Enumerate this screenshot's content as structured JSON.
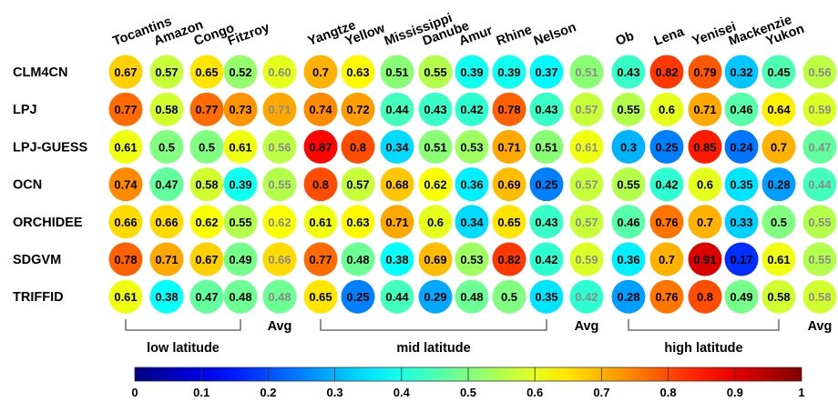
{
  "chart_data": {
    "type": "heatmap",
    "models": [
      "CLM4CN",
      "LPJ",
      "LPJ-GUESS",
      "OCN",
      "ORCHIDEE",
      "SDGVM",
      "TRIFFID"
    ],
    "groups": [
      {
        "label": "low latitude",
        "avg_label": "Avg",
        "rivers": [
          "Tocantins",
          "Amazon",
          "Congo",
          "Fitzroy"
        ],
        "values": [
          [
            0.67,
            0.57,
            0.65,
            0.52
          ],
          [
            0.77,
            0.58,
            0.77,
            0.73
          ],
          [
            0.61,
            0.5,
            0.5,
            0.61
          ],
          [
            0.74,
            0.47,
            0.58,
            0.39
          ],
          [
            0.66,
            0.66,
            0.62,
            0.55
          ],
          [
            0.78,
            0.71,
            0.67,
            0.49
          ],
          [
            0.61,
            0.38,
            0.47,
            0.48
          ]
        ],
        "avg": [
          0.6,
          0.71,
          0.56,
          0.55,
          0.62,
          0.66,
          0.48
        ]
      },
      {
        "label": "mid latitude",
        "avg_label": "Avg",
        "rivers": [
          "Yangtze",
          "Yellow",
          "Mississippi",
          "Danube",
          "Amur",
          "Rhine",
          "Nelson"
        ],
        "values": [
          [
            0.7,
            0.63,
            0.51,
            0.55,
            0.39,
            0.39,
            0.37
          ],
          [
            0.74,
            0.72,
            0.44,
            0.43,
            0.42,
            0.78,
            0.43
          ],
          [
            0.87,
            0.8,
            0.34,
            0.51,
            0.53,
            0.71,
            0.51
          ],
          [
            0.8,
            0.57,
            0.68,
            0.62,
            0.36,
            0.69,
            0.25
          ],
          [
            0.61,
            0.63,
            0.71,
            0.6,
            0.34,
            0.65,
            0.43
          ],
          [
            0.77,
            0.48,
            0.38,
            0.69,
            0.53,
            0.82,
            0.42
          ],
          [
            0.65,
            0.25,
            0.44,
            0.29,
            0.48,
            0.5,
            0.35
          ]
        ],
        "avg": [
          0.51,
          0.57,
          0.61,
          0.57,
          0.57,
          0.59,
          0.42
        ]
      },
      {
        "label": "high latitude",
        "avg_label": "Avg",
        "rivers": [
          "Ob",
          "Lena",
          "Yenisei",
          "Mackenzie",
          "Yukon"
        ],
        "values": [
          [
            0.43,
            0.82,
            0.79,
            0.32,
            0.45
          ],
          [
            0.55,
            0.6,
            0.71,
            0.46,
            0.64
          ],
          [
            0.3,
            0.25,
            0.85,
            0.24,
            0.7
          ],
          [
            0.55,
            0.42,
            0.6,
            0.35,
            0.28
          ],
          [
            0.46,
            0.76,
            0.7,
            0.33,
            0.5
          ],
          [
            0.36,
            0.7,
            0.91,
            0.17,
            0.61
          ],
          [
            0.28,
            0.76,
            0.8,
            0.49,
            0.58
          ]
        ],
        "avg": [
          0.56,
          0.59,
          0.47,
          0.44,
          0.55,
          0.55,
          0.58
        ]
      }
    ],
    "colorbar": {
      "ticks": [
        "0",
        "0.1",
        "0.2",
        "0.3",
        "0.4",
        "0.5",
        "0.6",
        "0.7",
        "0.8",
        "0.9",
        "1"
      ],
      "range": [
        0,
        1
      ],
      "colormap": "jet"
    },
    "avg_text_color": "#8a8a8a",
    "value_text_color": "#000000"
  }
}
